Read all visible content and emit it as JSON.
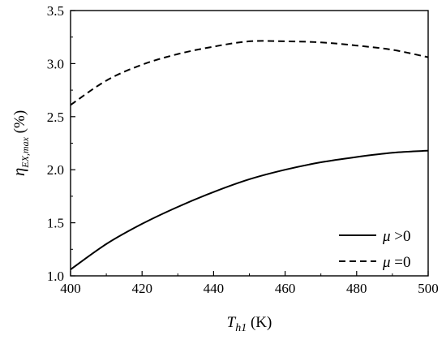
{
  "chart_data": {
    "type": "line",
    "x_axis": {
      "range": [
        400,
        500
      ],
      "ticks": [
        400,
        420,
        440,
        460,
        480,
        500
      ],
      "tick_labels": [
        "400",
        "420",
        "440",
        "460",
        "480",
        "500"
      ],
      "label": {
        "symbol": "T",
        "subscript": "h1",
        "unit": " (K)"
      }
    },
    "y_axis": {
      "range": [
        1.0,
        3.5
      ],
      "ticks": [
        1.0,
        1.5,
        2.0,
        2.5,
        3.0,
        3.5
      ],
      "tick_labels": [
        "1.0",
        "1.5",
        "2.0",
        "2.5",
        "3.0",
        "3.5"
      ],
      "label": {
        "symbol": "η",
        "subscript": "EX,max",
        "unit": " (%)"
      }
    },
    "grid": false,
    "legend_position": "bottom-right",
    "series": [
      {
        "key": "mu-positive",
        "legend": {
          "symbol": "μ",
          "text": " >0"
        },
        "style": "solid",
        "color": "#000000",
        "x": [
          400,
          410,
          420,
          430,
          440,
          450,
          460,
          470,
          480,
          490,
          500
        ],
        "y": [
          1.06,
          1.3,
          1.49,
          1.65,
          1.79,
          1.91,
          2.0,
          2.07,
          2.12,
          2.16,
          2.18
        ]
      },
      {
        "key": "mu-zero",
        "legend": {
          "symbol": "μ",
          "text": " =0"
        },
        "style": "dashed",
        "color": "#000000",
        "x": [
          400,
          410,
          420,
          430,
          440,
          450,
          460,
          470,
          480,
          490,
          500
        ],
        "y": [
          2.61,
          2.84,
          2.99,
          3.09,
          3.16,
          3.21,
          3.21,
          3.2,
          3.17,
          3.13,
          3.06
        ]
      }
    ]
  }
}
